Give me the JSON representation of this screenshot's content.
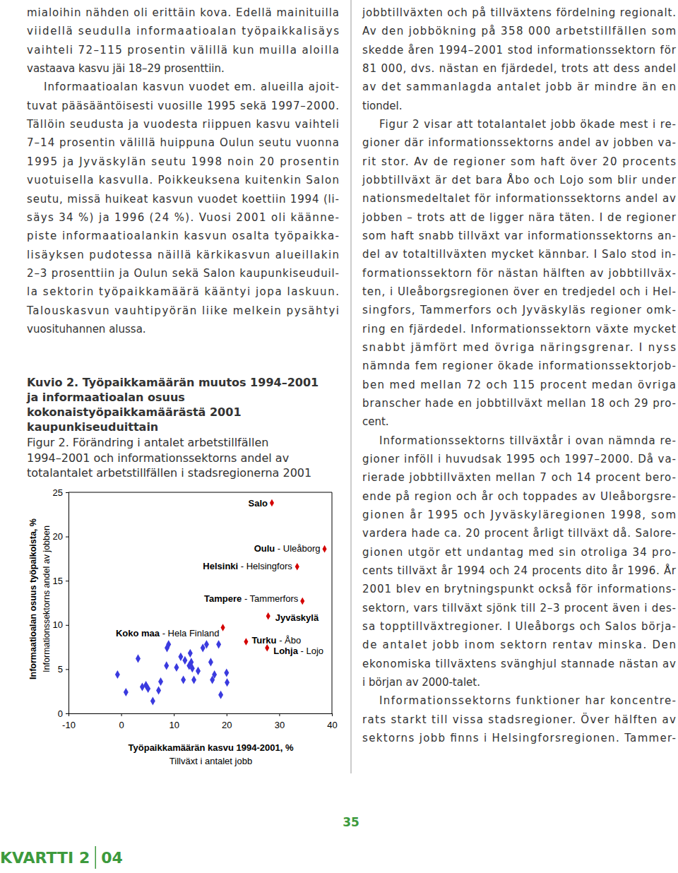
{
  "left_column": [
    [
      "mialoihin nähden oli erittäin kova. Edellä mainituilla",
      "viidellä seudulla informaatioalan työpaikkalisäys",
      "vaihteli 72–115 prosentin välillä kun muilla aloilla",
      "vastaava kasvu jäi 18–29 prosenttiin."
    ],
    [
      "Informaatioalan kasvun vuodet em. alueilla ajoit-",
      "tuvat pääsääntöisesti vuosille 1995 sekä 1997–2000.",
      "Tällöin seudusta ja vuodesta riippuen kasvu vaihteli",
      "7–14 prosentin välillä huippuna Oulun seutu vuonna",
      "1995 ja Jyväskylän seutu 1998 noin 20 prosentin",
      "vuotuisella kasvulla. Poikkeuksena kuitenkin Salon",
      "seutu, missä huikeat kasvun vuodet koettiin 1994 (li-",
      "säys 34 %) ja 1996 (24 %). Vuosi 2001 oli käänne-",
      "piste informaatioalankin kasvun osalta työpaikka-",
      "lisäyksen pudotessa näillä kärkikasvun alueillakin",
      "2–3 prosenttiin ja Oulun sekä Salon kaupunkiseuduil-",
      "la sektorin työpaikkamäärä kääntyi jopa laskuun.",
      "Talouskasvun vauhtipyörän liike melkein pysähtyi",
      "vuosituhannen alussa."
    ]
  ],
  "right_column": [
    [
      "jobbtillväxten och på tillväxtens fördelning regionalt.",
      "Av den jobbökning på 358 000 arbetstillfällen som",
      "skedde åren 1994–2001 stod informationssektorn för",
      "81 000, dvs. nästan en fjärdedel, trots att dess andel",
      "av det sammanlagda antalet jobb är mindre än en",
      "tiondel."
    ],
    [
      "Figur 2 visar att totalantalet jobb ökade mest i re-",
      "gioner där informationssektorns andel av jobben va-",
      "rit stor. Av de regioner som haft över 20 procents",
      "jobbtillväxt är det bara Åbo och Lojo som blir under",
      "nationsmedeltalet för informationssektorns andel av",
      "jobben – trots att de ligger nära täten. I de regioner",
      "som haft snabb tillväxt var informationssektorns an-",
      "del av totaltillväxten mycket kännbar. I Salo stod in-",
      "formationssektorn för nästan hälften av jobbtillväx-",
      "ten, i Uleåborgsregionen över en tredjedel och i Hel-",
      "singfors, Tammerfors och Jyväskyläs regioner omk-",
      "ring en fjärdedel. Informationssektorn växte mycket",
      "snabbt jämfört med övriga näringsgrenar. I nyss",
      "nämnda fem regioner ökade informationssektorjob-",
      "ben med mellan 72 och 115 procent medan övriga",
      "branscher hade en jobbtillväxt mellan 18 och 29 pro-",
      "cent."
    ],
    [
      "Informationssektorns tillväxtår i ovan nämnda re-",
      "gioner inföll i huvudsak 1995 och 1997–2000. Då va-",
      "rierade jobbtillväxten mellan 7 och 14 procent bero-",
      "ende på region och år och toppades av Uleåborgsre-",
      "gionen år 1995 och Jyväskyläregionen 1998, som",
      "vardera hade ca. 20 procent årligt tillväxt då. Salore-",
      "gionen utgör ett undantag med sin otroliga 34 pro-",
      "cents tillväxt år 1994 och 24 procents dito år 1996. År",
      "2001 blev en brytningspunkt också för informations-",
      "sektorn, vars tillväxt sjönk till 2–3 procent även i des-",
      "sa topptillväxtregioner. I Uleåborgs och Salos börja-",
      "de antalet jobb inom sektorn rentav minska. Den",
      "ekonomiska tillväxtens svänghjul stannade nästan av",
      "i början av 2000-talet."
    ],
    [
      "Informationssektorns funktioner har koncentre-",
      "rats starkt till vissa stadsregioner. Över hälften av",
      "sektorns jobb finns i Helsingforsregionen. Tammer-"
    ]
  ],
  "figure": {
    "caption_fi": [
      "Kuvio 2. Työpaikkamäärän muutos 1994–2001",
      "ja informaatioalan osuus",
      "kokonaistyöpaikkamäärästä 2001",
      "kaupunkiseuduittain"
    ],
    "caption_sv": [
      "Figur 2. Förändring i antalet arbetstillfällen",
      "1994–2001 och informationssektorns andel av",
      "totalantalet arbetstillfällen i stadsregionerna 2001"
    ]
  },
  "chart_data": {
    "type": "scatter",
    "x_label": [
      "Työpaikkamäärän kasvu 1994-2001, %",
      "Tillväxt i antalet jobb"
    ],
    "y_label": [
      "Informaatioalan osuus työpaikoista, %",
      "Informationssektorns andel av jobben"
    ],
    "xlim": [
      -10,
      40
    ],
    "xticks": [
      -10,
      0,
      10,
      20,
      30,
      40
    ],
    "ylim": [
      0,
      25
    ],
    "yticks": [
      0,
      5,
      10,
      15,
      20,
      25
    ],
    "grid": false,
    "marker": "diamond",
    "series": [
      {
        "color": "#3a3adf",
        "x": [
          -0.7,
          0.9,
          3.2,
          4.0,
          4.7,
          5.1,
          6.0,
          7.1,
          7.5,
          8.6,
          8.7,
          9.0,
          10.5,
          11.3,
          11.8,
          12.1,
          12.9,
          13.1,
          13.3,
          13.5,
          13.8,
          14.6,
          15.5,
          16.2,
          17.0,
          17.3,
          17.7,
          18.5,
          18.9,
          20.0,
          20.1
        ],
        "values": [
          4.4,
          2.4,
          6.2,
          3.0,
          3.2,
          2.8,
          1.4,
          2.6,
          3.6,
          5.4,
          7.4,
          7.8,
          5.2,
          6.4,
          3.8,
          6.0,
          5.4,
          6.8,
          5.8,
          5.1,
          3.8,
          4.8,
          7.4,
          7.8,
          5.8,
          3.8,
          4.4,
          7.8,
          2.1,
          4.6,
          3.5
        ]
      },
      {
        "color": "#d40000",
        "x": [
          28.6,
          38.6,
          33.4,
          34.4,
          27.9,
          19.3,
          23.7,
          27.7
        ],
        "values": [
          23.8,
          18.6,
          16.6,
          12.7,
          11.0,
          9.7,
          8.1,
          7.4
        ],
        "labels": [
          "Salo",
          "Oulu - Uleåborg",
          "Helsinki - Helsingfors",
          "Tampere - Tammerfors",
          "Jyväskylä",
          "Koko maa - Hela Finland",
          "Turku - Åbo",
          "Lohja - Lojo"
        ]
      }
    ]
  },
  "page_number": "35",
  "footer": [
    "KVARTTI 2",
    "04"
  ]
}
